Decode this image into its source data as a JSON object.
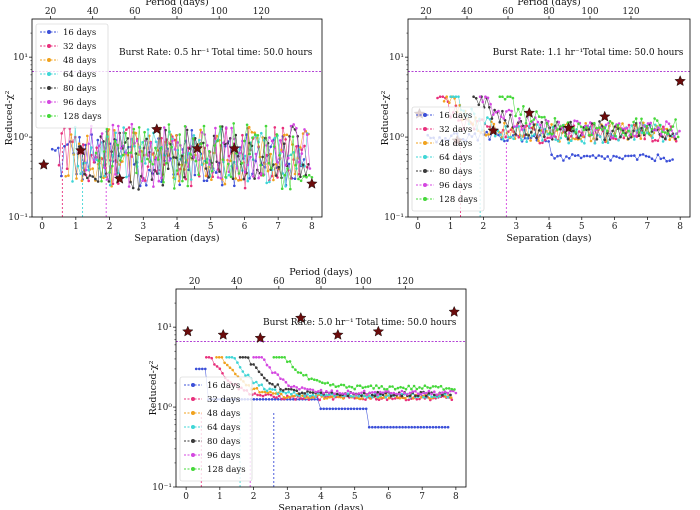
{
  "series_styles": [
    {
      "name": "16 days",
      "color": "#3b4fd8"
    },
    {
      "name": "32 days",
      "color": "#e8307c"
    },
    {
      "name": "48 days",
      "color": "#f0a21e"
    },
    {
      "name": "64 days",
      "color": "#3fd6d6"
    },
    {
      "name": "80 days",
      "color": "#3a3a3a"
    },
    {
      "name": "96 days",
      "color": "#d447e0"
    },
    {
      "name": "128 days",
      "color": "#45d83a"
    }
  ],
  "star_color": "#6b0c0c",
  "threshold_color": "#b344d6",
  "chart_data": [
    {
      "type": "scatter",
      "xlabel": "Separation (days)",
      "top_xlabel": "Period (days)",
      "ylabel": "Reduced-χ²",
      "xlim": [
        -0.3,
        8.3
      ],
      "ylim": [
        0.1,
        30
      ],
      "yscale": "log",
      "x_ticks": [
        "0",
        "1",
        "2",
        "3",
        "4",
        "5",
        "6",
        "7",
        "8"
      ],
      "top_ticks": [
        "20",
        "40",
        "60",
        "80",
        "100",
        "120"
      ],
      "y_ticks": [
        "10⁻¹",
        "10⁰",
        "10¹"
      ],
      "threshold": 6.6,
      "annotations": [
        "Burst Rate: 0.5 hr⁻¹",
        "Total time: 50.0 hours"
      ],
      "legend_position": "upper-left",
      "curve_style": "noisy",
      "series": [
        {
          "name": "16 days",
          "start": 0.3,
          "end": 7.8,
          "level": 0.55,
          "step": 0.09
        },
        {
          "name": "32 days",
          "start": 0.5,
          "end": 7.9,
          "level": 0.6,
          "step": 0.08
        },
        {
          "name": "48 days",
          "start": 0.7,
          "end": 7.9,
          "level": 0.62,
          "step": 0.08
        },
        {
          "name": "64 days",
          "start": 0.9,
          "end": 7.9,
          "level": 0.6,
          "step": 0.08
        },
        {
          "name": "80 days",
          "start": 1.1,
          "end": 7.9,
          "level": 0.65,
          "step": 0.08
        },
        {
          "name": "96 days",
          "start": 1.3,
          "end": 8.0,
          "level": 0.68,
          "step": 0.08
        },
        {
          "name": "128 days",
          "start": 1.6,
          "end": 8.0,
          "level": 0.7,
          "step": 0.08
        }
      ],
      "stars": [
        {
          "x": 0.05,
          "y": 0.45
        },
        {
          "x": 1.15,
          "y": 0.68
        },
        {
          "x": 2.3,
          "y": 0.3
        },
        {
          "x": 3.4,
          "y": 1.25
        },
        {
          "x": 4.6,
          "y": 0.72
        },
        {
          "x": 5.7,
          "y": 0.72
        },
        {
          "x": 8.0,
          "y": 0.26
        }
      ],
      "drop_lines": [
        0.6,
        1.2,
        1.9
      ]
    },
    {
      "type": "scatter",
      "xlabel": "Separation (days)",
      "top_xlabel": "Period (days)",
      "ylabel": "Reduced-χ²",
      "xlim": [
        -0.3,
        8.3
      ],
      "ylim": [
        0.1,
        30
      ],
      "yscale": "log",
      "x_ticks": [
        "0",
        "1",
        "2",
        "3",
        "4",
        "5",
        "6",
        "7",
        "8"
      ],
      "top_ticks": [
        "20",
        "40",
        "60",
        "80",
        "100",
        "120"
      ],
      "y_ticks": [
        "10⁻¹",
        "10⁰",
        "10¹"
      ],
      "threshold": 6.6,
      "annotations": [
        "Burst Rate: 1.1 hr⁻¹",
        "Total time: 50.0 hours"
      ],
      "legend_position": "lower-left",
      "curve_style": "decay",
      "series": [
        {
          "name": "16 days",
          "start": 0.3,
          "end": 7.8,
          "level": 0.55,
          "step": 0.09
        },
        {
          "name": "32 days",
          "start": 0.6,
          "end": 7.9,
          "level": 1.1,
          "step": 0.08
        },
        {
          "name": "48 days",
          "start": 0.8,
          "end": 7.9,
          "level": 1.15,
          "step": 0.08
        },
        {
          "name": "64 days",
          "start": 1.0,
          "end": 7.9,
          "level": 1.1,
          "step": 0.08
        },
        {
          "name": "80 days",
          "start": 1.7,
          "end": 7.9,
          "level": 1.2,
          "step": 0.08
        },
        {
          "name": "96 days",
          "start": 1.9,
          "end": 8.0,
          "level": 1.25,
          "step": 0.08
        },
        {
          "name": "128 days",
          "start": 2.5,
          "end": 8.0,
          "level": 1.3,
          "step": 0.08
        }
      ],
      "stars": [
        {
          "x": 0.05,
          "y": 1.95
        },
        {
          "x": 1.2,
          "y": 0.9
        },
        {
          "x": 2.3,
          "y": 1.2
        },
        {
          "x": 3.4,
          "y": 2.0
        },
        {
          "x": 4.6,
          "y": 1.3
        },
        {
          "x": 5.7,
          "y": 1.8
        },
        {
          "x": 8.0,
          "y": 5.0
        }
      ],
      "drop_lines": [
        1.3,
        1.9,
        2.7
      ]
    },
    {
      "type": "scatter",
      "xlabel": "Separation (days)",
      "top_xlabel": "Period (days)",
      "ylabel": "Reduced-χ²",
      "xlim": [
        -0.3,
        8.3
      ],
      "ylim": [
        0.1,
        30
      ],
      "yscale": "log",
      "x_ticks": [
        "0",
        "1",
        "2",
        "3",
        "4",
        "5",
        "6",
        "7",
        "8"
      ],
      "top_ticks": [
        "20",
        "40",
        "60",
        "80",
        "100",
        "120"
      ],
      "y_ticks": [
        "10⁻¹",
        "10⁰",
        "10¹"
      ],
      "threshold": 6.6,
      "annotations": [
        "Burst Rate: 5.0 hr⁻¹",
        "Total time: 50.0 hours"
      ],
      "legend_position": "lower-left",
      "curve_style": "smooth",
      "series": [
        {
          "name": "16 days",
          "start": 0.3,
          "end": 7.8,
          "level": 0.55,
          "step": 0.09
        },
        {
          "name": "32 days",
          "start": 0.6,
          "end": 7.9,
          "level": 1.3,
          "step": 0.08
        },
        {
          "name": "48 days",
          "start": 0.9,
          "end": 7.9,
          "level": 1.35,
          "step": 0.08
        },
        {
          "name": "64 days",
          "start": 1.2,
          "end": 7.9,
          "level": 1.4,
          "step": 0.08
        },
        {
          "name": "80 days",
          "start": 1.6,
          "end": 7.9,
          "level": 1.45,
          "step": 0.08
        },
        {
          "name": "96 days",
          "start": 2.0,
          "end": 8.0,
          "level": 1.5,
          "step": 0.08
        },
        {
          "name": "128 days",
          "start": 2.6,
          "end": 8.0,
          "level": 1.75,
          "step": 0.08
        }
      ],
      "stars": [
        {
          "x": 0.05,
          "y": 8.8
        },
        {
          "x": 1.1,
          "y": 8.0
        },
        {
          "x": 2.2,
          "y": 7.3
        },
        {
          "x": 3.4,
          "y": 13.0
        },
        {
          "x": 4.5,
          "y": 8.0
        },
        {
          "x": 5.7,
          "y": 8.8
        },
        {
          "x": 7.95,
          "y": 15.5
        }
      ],
      "drop_lines": [
        0.45,
        1.6,
        1.9,
        2.6
      ]
    }
  ]
}
